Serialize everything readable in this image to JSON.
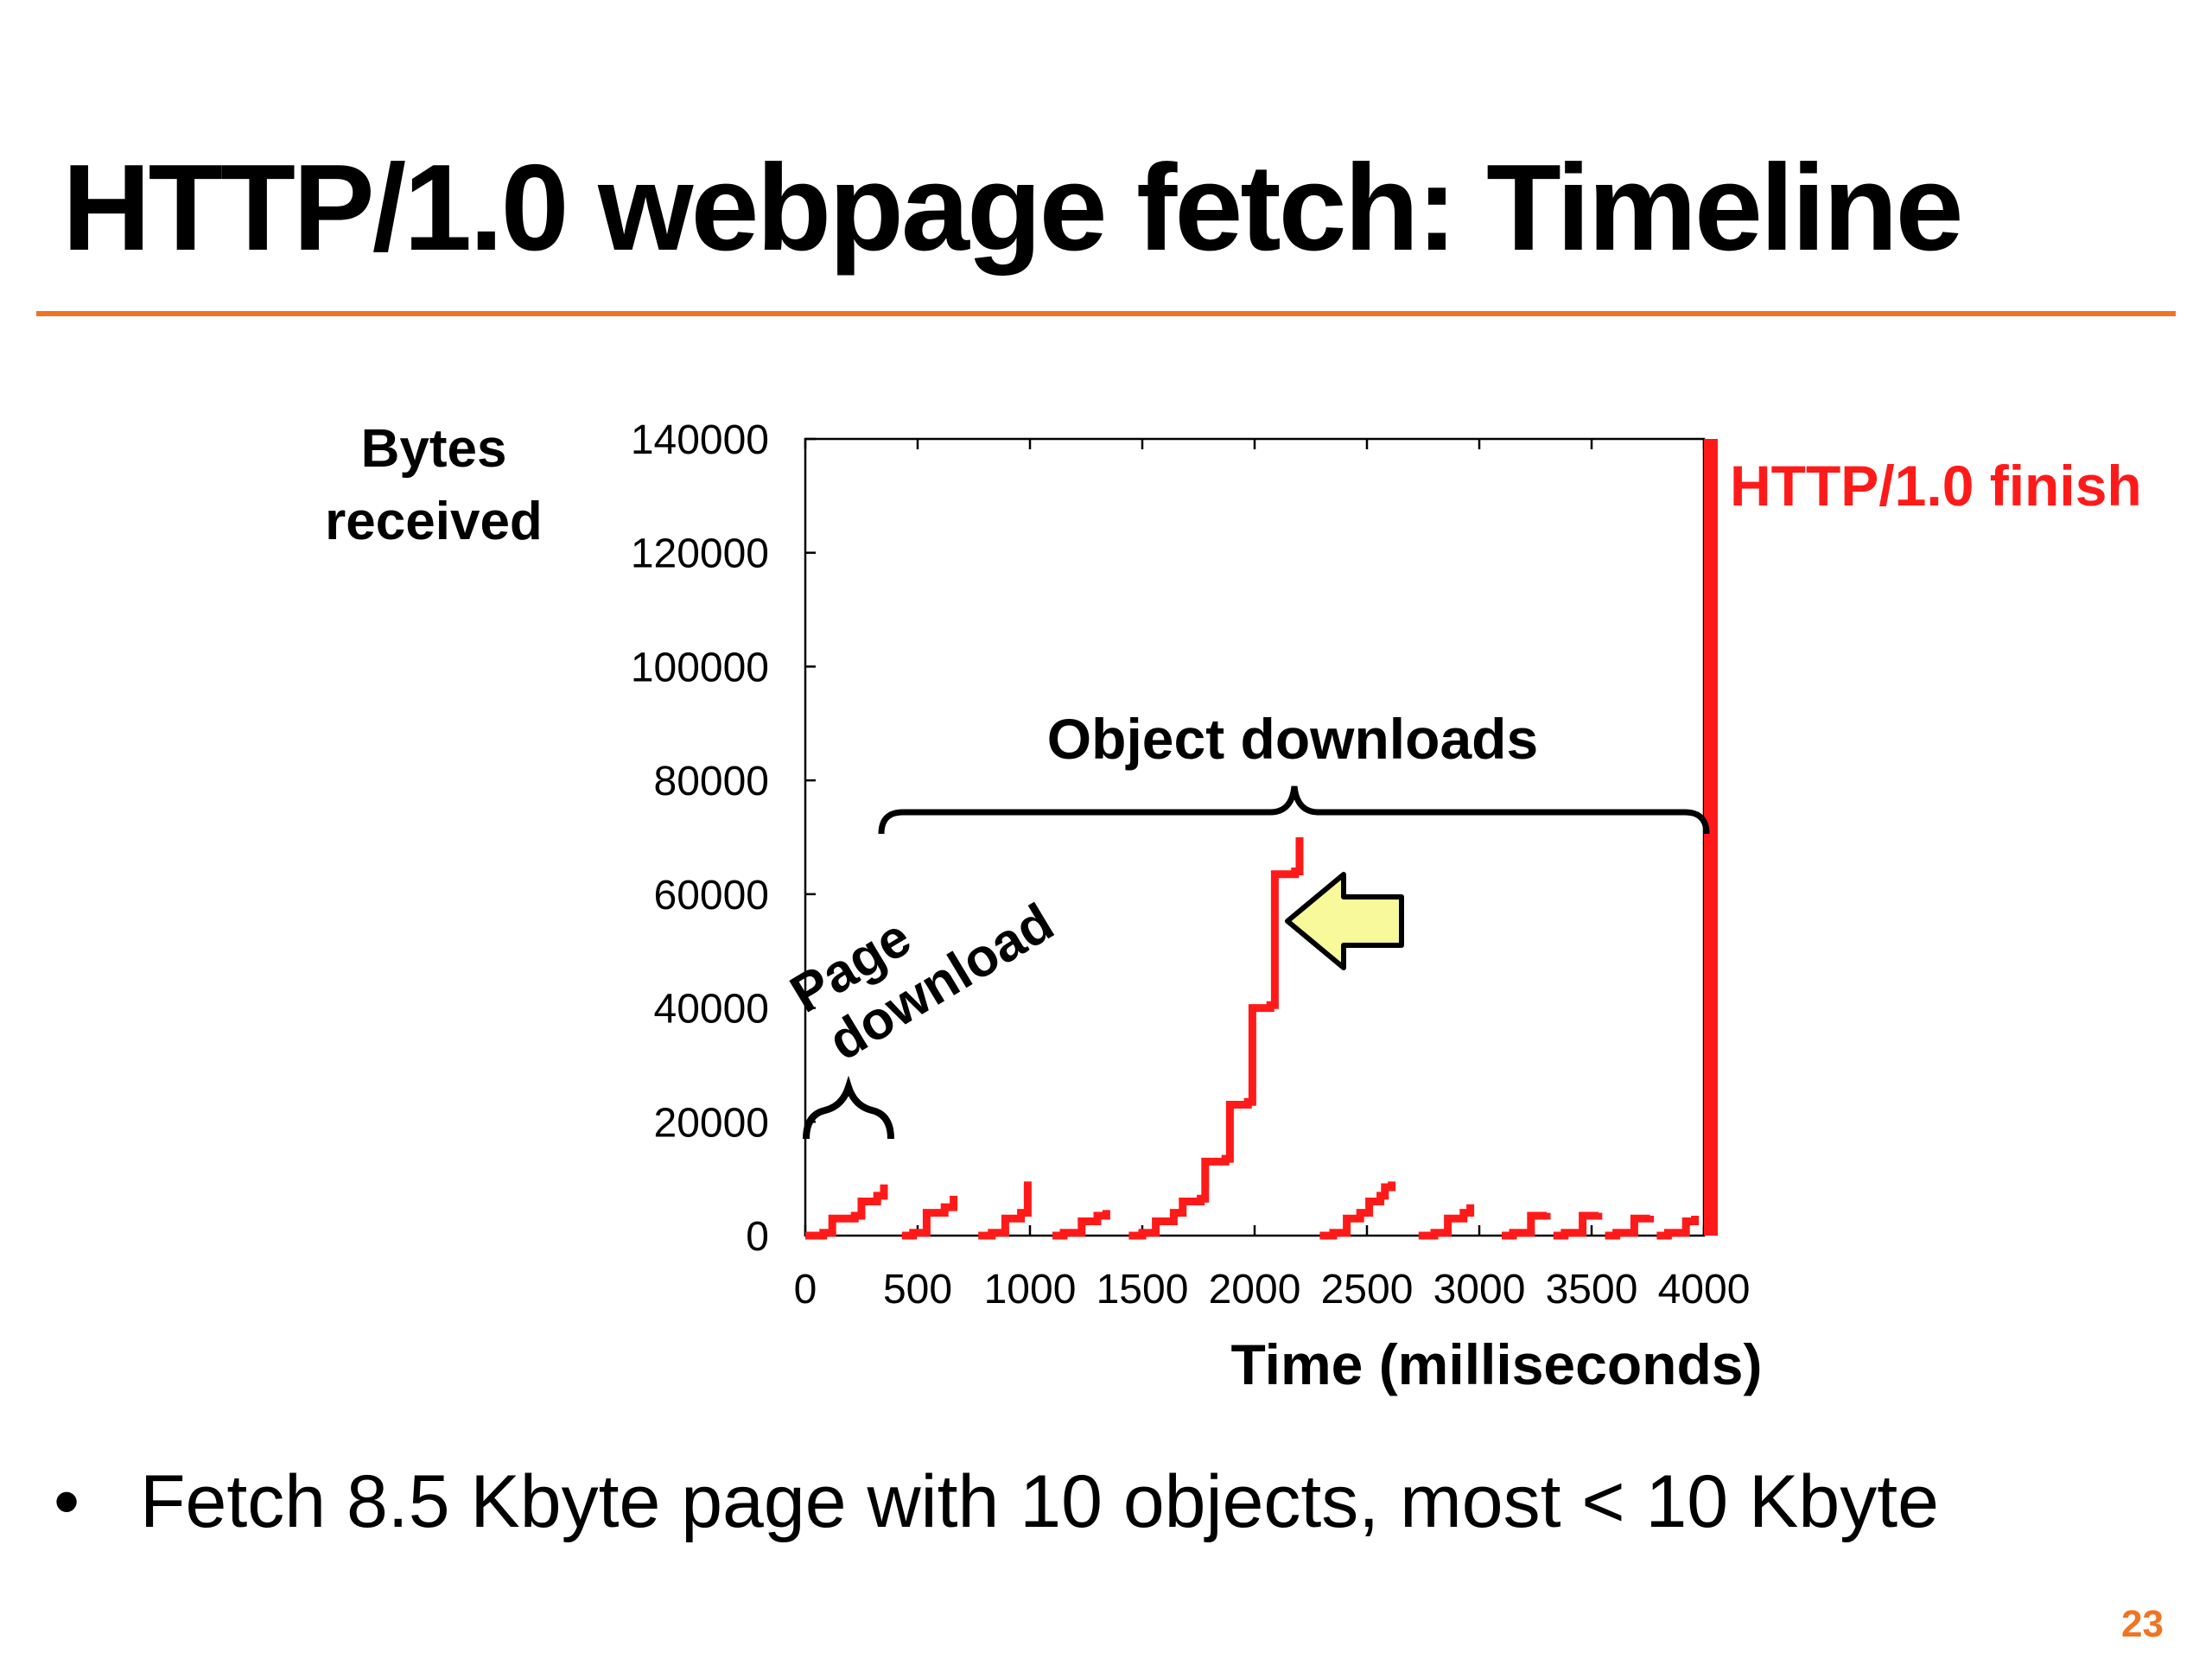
{
  "slide": {
    "title": "HTTP/1.0 webpage fetch: Timeline",
    "bullet": "Fetch 8.5 Kbyte page with 10 objects, most < 10 Kbyte",
    "page_number": "23"
  },
  "colors": {
    "accent_rule": "#f07422",
    "series_red": "#ff1a1a",
    "finish_red": "#ff1a1a",
    "arrow_fill": "#f8f99a",
    "page_number": "#f07422"
  },
  "chart_data": {
    "type": "line",
    "title": "",
    "xlabel": "Time (milliseconds)",
    "ylabel": "Bytes received",
    "xlim": [
      0,
      4000
    ],
    "ylim": [
      0,
      140000
    ],
    "xticks": [
      0,
      500,
      1000,
      1500,
      2000,
      2500,
      3000,
      3500,
      4000
    ],
    "yticks": [
      0,
      20000,
      40000,
      60000,
      80000,
      100000,
      120000,
      140000
    ],
    "grid": false,
    "legend": "none",
    "series": [
      {
        "steps": [
          [
            [
              0,
              0
            ],
            [
              80,
              500
            ],
            [
              120,
              3000
            ],
            [
              220,
              3500
            ],
            [
              250,
              6000
            ],
            [
              320,
              7000
            ],
            [
              350,
              9000
            ]
          ],
          [
            [
              430,
              0
            ],
            [
              480,
              500
            ],
            [
              540,
              4000
            ],
            [
              620,
              5000
            ],
            [
              660,
              7000
            ]
          ],
          [
            [
              770,
              0
            ],
            [
              830,
              500
            ],
            [
              890,
              3000
            ],
            [
              960,
              4000
            ],
            [
              990,
              9500
            ]
          ],
          [
            [
              1100,
              0
            ],
            [
              1150,
              500
            ],
            [
              1230,
              2500
            ],
            [
              1300,
              3500
            ],
            [
              1340,
              4500
            ]
          ],
          [
            [
              1440,
              0
            ],
            [
              1500,
              500
            ],
            [
              1560,
              2500
            ],
            [
              1640,
              4000
            ],
            [
              1680,
              6000
            ],
            [
              1760,
              6500
            ],
            [
              1780,
              13000
            ],
            [
              1870,
              13500
            ],
            [
              1890,
              23000
            ],
            [
              1970,
              23500
            ],
            [
              1990,
              40000
            ],
            [
              2070,
              40500
            ],
            [
              2090,
              63500
            ],
            [
              2180,
              64000
            ],
            [
              2200,
              70000
            ]
          ]
        ]
      },
      {
        "steps": [
          [
            [
              2290,
              0
            ],
            [
              2350,
              500
            ],
            [
              2410,
              3000
            ],
            [
              2470,
              4000
            ],
            [
              2510,
              6000
            ],
            [
              2560,
              7000
            ],
            [
              2580,
              8500
            ],
            [
              2610,
              9500
            ]
          ]
        ]
      },
      {
        "steps": [
          [
            [
              2730,
              0
            ],
            [
              2800,
              500
            ],
            [
              2860,
              3000
            ],
            [
              2930,
              4000
            ],
            [
              2960,
              5500
            ]
          ]
        ]
      },
      {
        "steps": [
          [
            [
              3100,
              0
            ],
            [
              3150,
              500
            ],
            [
              3230,
              3500
            ],
            [
              3300,
              4000
            ]
          ]
        ]
      },
      {
        "steps": [
          [
            [
              3330,
              0
            ],
            [
              3380,
              500
            ],
            [
              3460,
              3500
            ],
            [
              3530,
              4000
            ]
          ]
        ]
      },
      {
        "steps": [
          [
            [
              3560,
              0
            ],
            [
              3610,
              500
            ],
            [
              3690,
              3000
            ],
            [
              3760,
              3500
            ]
          ]
        ]
      },
      {
        "steps": [
          [
            [
              3790,
              0
            ],
            [
              3840,
              500
            ],
            [
              3920,
              2500
            ],
            [
              3960,
              3500
            ]
          ]
        ]
      }
    ],
    "finish_line": {
      "x": 4000,
      "label": "HTTP/1.0 finish"
    },
    "annotations": {
      "object_downloads": "Object downloads",
      "page_download_line1": "Page",
      "page_download_line2": "download"
    }
  }
}
